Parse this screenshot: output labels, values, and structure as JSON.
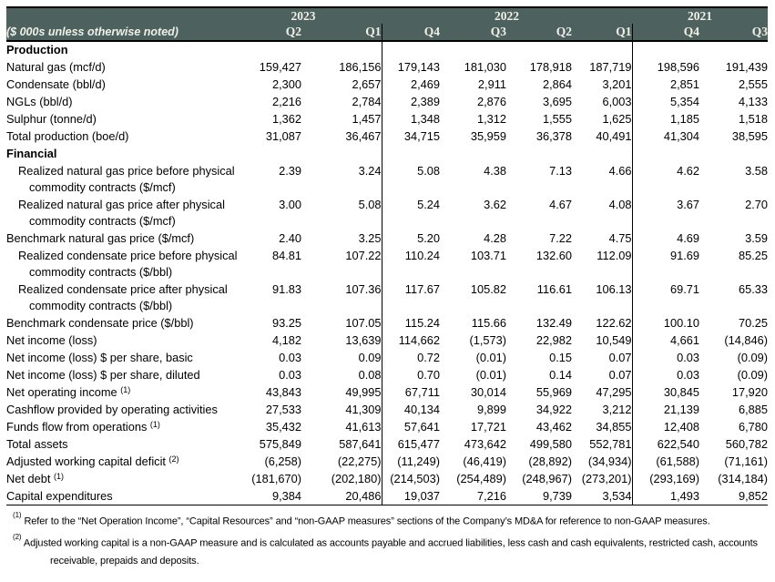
{
  "colors": {
    "header_bg": "#4d625e",
    "header_text": "#f1efe6",
    "border": "#000000",
    "body_bg": "#ffffff"
  },
  "table": {
    "unit_note": "($ 000s unless otherwise noted)",
    "year_groups": [
      {
        "label": "2023",
        "span": 2
      },
      {
        "label": "2022",
        "span": 4
      },
      {
        "label": "2021",
        "span": 2
      }
    ],
    "quarter_headers": [
      "Q2",
      "Q1",
      "Q4",
      "Q3",
      "Q2",
      "Q1",
      "Q4",
      "Q3"
    ],
    "rows": [
      {
        "type": "section",
        "label": "Production"
      },
      {
        "type": "data",
        "label": "Natural gas (mcf/d)",
        "values": [
          "159,427",
          "186,156",
          "179,143",
          "181,030",
          "178,918",
          "187,719",
          "198,596",
          "191,439"
        ]
      },
      {
        "type": "data",
        "label": "Condensate (bbl/d)",
        "values": [
          "2,300",
          "2,657",
          "2,469",
          "2,911",
          "2,864",
          "3,201",
          "2,851",
          "2,555"
        ]
      },
      {
        "type": "data",
        "label": "NGLs (bbl/d)",
        "values": [
          "2,216",
          "2,784",
          "2,389",
          "2,876",
          "3,695",
          "6,003",
          "5,354",
          "4,133"
        ]
      },
      {
        "type": "data",
        "label": "Sulphur (tonne/d)",
        "values": [
          "1,362",
          "1,457",
          "1,348",
          "1,312",
          "1,555",
          "1,625",
          "1,185",
          "1,518"
        ]
      },
      {
        "type": "data",
        "label": "Total production (boe/d)",
        "indent": 0,
        "values": [
          "31,087",
          "36,467",
          "34,715",
          "35,959",
          "36,378",
          "40,491",
          "41,304",
          "38,595"
        ]
      },
      {
        "type": "section",
        "label": "Financial"
      },
      {
        "type": "data",
        "lines": [
          "Realized natural gas price before physical",
          "commodity contracts ($/mcf)"
        ],
        "values": [
          "2.39",
          "3.24",
          "5.08",
          "4.38",
          "7.13",
          "4.66",
          "4.62",
          "3.58"
        ]
      },
      {
        "type": "data",
        "lines": [
          "Realized natural gas price after physical",
          "commodity contracts ($/mcf)"
        ],
        "values": [
          "3.00",
          "5.08",
          "5.24",
          "3.62",
          "4.67",
          "4.08",
          "3.67",
          "2.70"
        ]
      },
      {
        "type": "data",
        "label": "Benchmark natural gas price ($/mcf)",
        "values": [
          "2.40",
          "3.25",
          "5.20",
          "4.28",
          "7.22",
          "4.75",
          "4.69",
          "3.59"
        ]
      },
      {
        "type": "data",
        "lines": [
          "Realized condensate price before physical",
          "commodity contracts ($/bbl)"
        ],
        "values": [
          "84.81",
          "107.22",
          "110.24",
          "103.71",
          "132.60",
          "112.09",
          "91.69",
          "85.25"
        ]
      },
      {
        "type": "data",
        "lines": [
          "Realized condensate price after physical",
          "commodity contracts ($/bbl)"
        ],
        "values": [
          "91.83",
          "107.36",
          "117.67",
          "105.82",
          "116.61",
          "106.13",
          "69.71",
          "65.33"
        ]
      },
      {
        "type": "data",
        "label": "Benchmark condensate price ($/bbl)",
        "values": [
          "93.25",
          "107.05",
          "115.24",
          "115.66",
          "132.49",
          "122.62",
          "100.10",
          "70.25"
        ]
      },
      {
        "type": "data",
        "label": "Net income (loss)",
        "values": [
          "4,182",
          "13,639",
          "114,662",
          "(1,573)",
          "22,982",
          "10,549",
          "4,661",
          "(14,846)"
        ]
      },
      {
        "type": "data",
        "label": "Net income (loss) $ per share, basic",
        "values": [
          "0.03",
          "0.09",
          "0.72",
          "(0.01)",
          "0.15",
          "0.07",
          "0.03",
          "(0.09)"
        ]
      },
      {
        "type": "data",
        "label": "Net income (loss) $ per share, diluted",
        "values": [
          "0.03",
          "0.08",
          "0.70",
          "(0.01)",
          "0.14",
          "0.07",
          "0.03",
          "(0.09)"
        ]
      },
      {
        "type": "data",
        "label": "Net operating income",
        "sup": "(1)",
        "values": [
          "43,843",
          "49,995",
          "67,711",
          "30,014",
          "55,969",
          "47,295",
          "30,845",
          "17,920"
        ]
      },
      {
        "type": "data",
        "label": "Cashflow provided by operating activities",
        "values": [
          "27,533",
          "41,309",
          "40,134",
          "9,899",
          "34,922",
          "3,212",
          "21,139",
          "6,885"
        ]
      },
      {
        "type": "data",
        "label": "Funds flow from operations",
        "sup": "(1)",
        "values": [
          "35,432",
          "41,613",
          "57,641",
          "17,721",
          "43,462",
          "34,855",
          "12,408",
          "6,780"
        ]
      },
      {
        "type": "data",
        "label": "Total assets",
        "values": [
          "575,849",
          "587,641",
          "615,477",
          "473,642",
          "499,580",
          "552,781",
          "622,540",
          "560,782"
        ]
      },
      {
        "type": "data",
        "label": "Adjusted working capital deficit",
        "sup": "(2)",
        "values": [
          "(6,258)",
          "(22,275)",
          "(11,249)",
          "(46,419)",
          "(28,892)",
          "(34,934)",
          "(61,588)",
          "(71,161)"
        ]
      },
      {
        "type": "data",
        "label": "Net debt",
        "sup": "(1)",
        "values": [
          "(181,670)",
          "(202,180)",
          "(214,503)",
          "(254,489)",
          "(248,967)",
          "(273,201)",
          "(293,169)",
          "(314,184)"
        ]
      },
      {
        "type": "data",
        "label": "Capital expenditures",
        "values": [
          "9,384",
          "20,486",
          "19,037",
          "7,216",
          "9,739",
          "3,534",
          "1,493",
          "9,852"
        ]
      }
    ]
  },
  "footnotes": [
    {
      "marker": "(1)",
      "text": "Refer to the “Net Operation Income”, “Capital Resources” and “non-GAAP measures” sections of the Company’s MD&A for reference to non-GAAP measures."
    },
    {
      "marker": "(2)",
      "text": "Adjusted working capital is a non-GAAP measure and is calculated as accounts payable and accrued liabilities, less cash and cash equivalents, restricted cash, accounts receivable, prepaids and deposits."
    }
  ]
}
